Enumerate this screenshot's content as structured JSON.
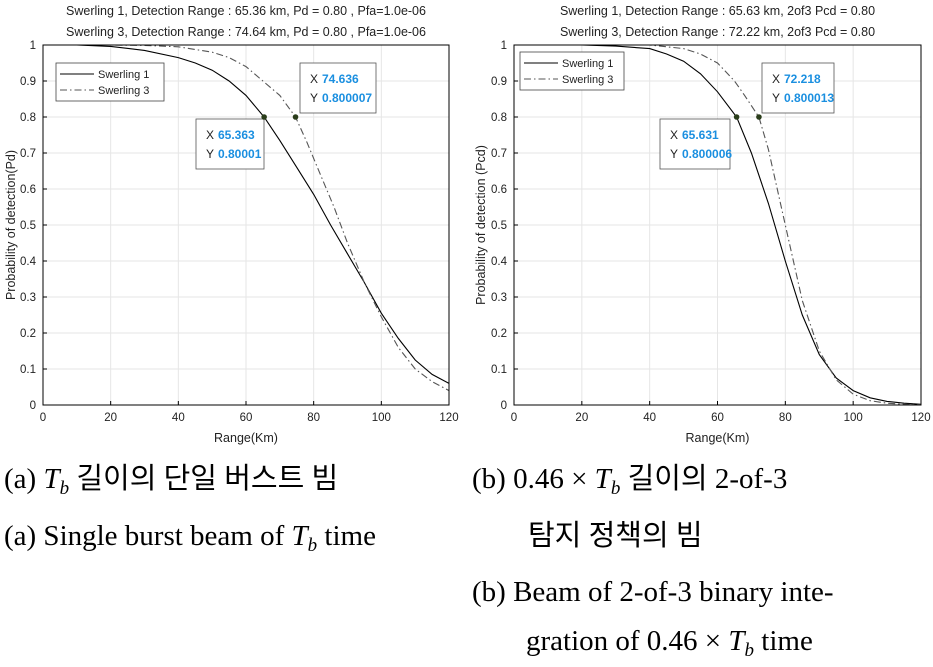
{
  "chart_data": [
    {
      "type": "line",
      "title": [
        "Swerling 1, Detection Range : 65.36 km, Pd = 0.80 , Pfa=1.0e-06",
        "Swerling 3, Detection Range : 74.64 km, Pd = 0.80 , Pfa=1.0e-06"
      ],
      "xlabel": "Range(Km)",
      "ylabel": "Probability of detection(Pd)",
      "xlim": [
        0,
        120
      ],
      "ylim": [
        0,
        1
      ],
      "xticks": [
        0,
        20,
        40,
        60,
        80,
        100,
        120
      ],
      "yticks": [
        0,
        0.1,
        0.2,
        0.3,
        0.4,
        0.5,
        0.6,
        0.7,
        0.8,
        0.9,
        1
      ],
      "grid": true,
      "legend": "top-left",
      "series": [
        {
          "name": "Swerling 1",
          "style": "solid",
          "color": "#000000",
          "x": [
            0,
            10,
            20,
            30,
            40,
            45,
            50,
            55,
            60,
            65.363,
            70,
            75,
            80,
            85,
            90,
            95,
            100,
            105,
            110,
            115,
            120
          ],
          "y": [
            1.0,
            1.0,
            0.996,
            0.985,
            0.965,
            0.95,
            0.93,
            0.9,
            0.86,
            0.8,
            0.735,
            0.66,
            0.585,
            0.5,
            0.42,
            0.34,
            0.255,
            0.185,
            0.125,
            0.085,
            0.06
          ]
        },
        {
          "name": "Swerling 3",
          "style": "dashdot",
          "color": "#555555",
          "x": [
            0,
            10,
            20,
            30,
            40,
            50,
            55,
            60,
            65,
            70,
            74.636,
            78,
            82,
            86,
            90,
            95,
            100,
            105,
            110,
            115,
            120
          ],
          "y": [
            1.0,
            1.0,
            1.0,
            0.999,
            0.995,
            0.98,
            0.965,
            0.94,
            0.9,
            0.86,
            0.8,
            0.73,
            0.64,
            0.55,
            0.45,
            0.34,
            0.245,
            0.16,
            0.1,
            0.065,
            0.04
          ]
        }
      ],
      "annotations": [
        {
          "x_label": "X",
          "x_value": "65.363",
          "y_label": "Y",
          "y_value": "0.80001",
          "x": 65.363,
          "y": 0.8
        },
        {
          "x_label": "X",
          "x_value": "74.636",
          "y_label": "Y",
          "y_value": "0.800007",
          "x": 74.636,
          "y": 0.8
        }
      ]
    },
    {
      "type": "line",
      "title": [
        "Swerling 1, Detection Range : 65.63 km, 2of3 Pcd = 0.80",
        "Swerling 3, Detection Range : 72.22 km, 2of3 Pcd = 0.80"
      ],
      "xlabel": "Range(Km)",
      "ylabel": "Probability of detection (Pcd)",
      "xlim": [
        0,
        120
      ],
      "ylim": [
        0,
        1
      ],
      "xticks": [
        0,
        20,
        40,
        60,
        80,
        100,
        120
      ],
      "yticks": [
        0,
        0.1,
        0.2,
        0.3,
        0.4,
        0.5,
        0.6,
        0.7,
        0.8,
        0.9,
        1
      ],
      "grid": true,
      "legend": "top-left",
      "series": [
        {
          "name": "Swerling 1",
          "style": "solid",
          "color": "#000000",
          "x": [
            0,
            20,
            30,
            40,
            45,
            50,
            55,
            60,
            65.631,
            70,
            75,
            80,
            85,
            90,
            95,
            100,
            105,
            110,
            115,
            120
          ],
          "y": [
            1.0,
            1.0,
            0.997,
            0.99,
            0.975,
            0.955,
            0.92,
            0.87,
            0.8,
            0.7,
            0.56,
            0.4,
            0.25,
            0.14,
            0.075,
            0.04,
            0.02,
            0.01,
            0.005,
            0.002
          ]
        },
        {
          "name": "Swerling 3",
          "style": "dashdot",
          "color": "#555555",
          "x": [
            0,
            20,
            30,
            40,
            50,
            55,
            60,
            65,
            68,
            72.218,
            75,
            80,
            85,
            90,
            95,
            100,
            105,
            110,
            115,
            120
          ],
          "y": [
            1.0,
            1.0,
            1.0,
            1.0,
            0.99,
            0.975,
            0.95,
            0.9,
            0.86,
            0.8,
            0.71,
            0.5,
            0.29,
            0.15,
            0.07,
            0.03,
            0.012,
            0.005,
            0.002,
            0.001
          ]
        }
      ],
      "annotations": [
        {
          "x_label": "X",
          "x_value": "65.631",
          "y_label": "Y",
          "y_value": "0.800006",
          "x": 65.631,
          "y": 0.8
        },
        {
          "x_label": "X",
          "x_value": "72.218",
          "y_label": "Y",
          "y_value": "0.800013",
          "x": 72.218,
          "y": 0.8
        }
      ]
    }
  ],
  "captions": {
    "a_ko_prefix": "(a) ",
    "a_ko_math": "T",
    "a_ko_sub": "b",
    "a_ko_text": " 길이의 단일 버스트 빔",
    "a_en_prefix": "(a) Single burst beam of ",
    "a_en_math": "T",
    "a_en_sub": "b",
    "a_en_suffix": " time",
    "b_ko_prefix": "(b)   0.46 × ",
    "b_ko_math": "T",
    "b_ko_sub": "b",
    "b_ko_text": "   길이의   2-of-3",
    "b_ko_line2": "탐지 정책의 빔",
    "b_en_line1": "(b) Beam of 2-of-3 binary inte-",
    "b_en_line2_prefix": "gration of 0.46 × ",
    "b_en_math": "T",
    "b_en_sub": "b",
    "b_en_suffix": " time"
  },
  "colors": {
    "axis": "#000000",
    "grid": "#e6e6e6",
    "annotation_value": "#1a8fe0",
    "marker": "#2a3d1a"
  }
}
